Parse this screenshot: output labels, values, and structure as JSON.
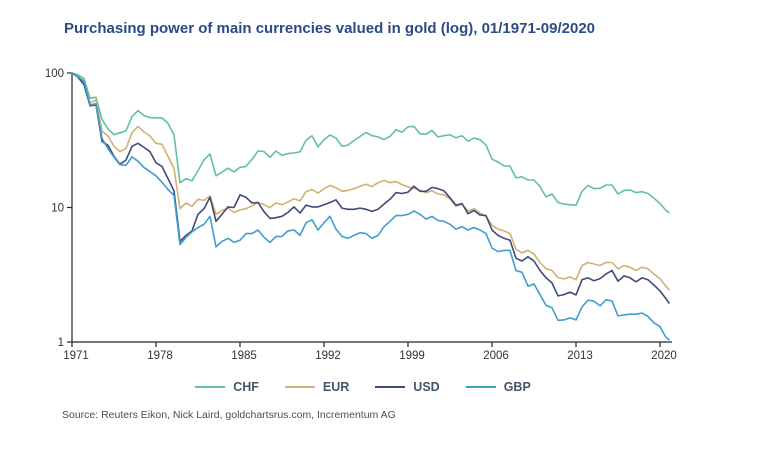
{
  "title": "Purchasing power of main currencies valued in gold (log), 01/1971-09/2020",
  "source": "Source: Reuters Eikon, Nick Laird, goldchartsrus.com, Incrementum AG",
  "colors": {
    "title_text": "#2c4a86",
    "axis": "#262626",
    "tick_label": "#333333",
    "legend_text": "#44546a",
    "source_text": "#4d4d4d",
    "chf": "#63c19e",
    "eur": "#cfb176",
    "usd": "#3f4a7a",
    "gbp": "#3f9ecd"
  },
  "chart_data": {
    "type": "line",
    "title": "Purchasing power of main currencies valued in gold (log), 01/1971-09/2020",
    "xlabel": "",
    "ylabel": "",
    "y_scale": "log",
    "ylim": [
      1,
      100
    ],
    "y_ticks": [
      100,
      10,
      1
    ],
    "x_ticks": [
      1971,
      1978,
      1985,
      1992,
      1999,
      2006,
      2013,
      2020
    ],
    "grid": false,
    "legend_position": "bottom",
    "x": [
      1971,
      1971.5,
      1972,
      1972.5,
      1973,
      1973.5,
      1974,
      1974.5,
      1975,
      1975.5,
      1976,
      1976.5,
      1977,
      1977.5,
      1978,
      1978.5,
      1979,
      1979.5,
      1980,
      1980.5,
      1981,
      1981.5,
      1982,
      1982.5,
      1983,
      1983.5,
      1984,
      1984.5,
      1985,
      1985.5,
      1986,
      1986.5,
      1987,
      1987.5,
      1988,
      1988.5,
      1989,
      1989.5,
      1990,
      1990.5,
      1991,
      1991.5,
      1992,
      1992.5,
      1993,
      1993.5,
      1994,
      1994.5,
      1995,
      1995.5,
      1996,
      1996.5,
      1997,
      1997.5,
      1998,
      1998.5,
      1999,
      1999.5,
      2000,
      2000.5,
      2001,
      2001.5,
      2002,
      2002.5,
      2003,
      2003.5,
      2004,
      2004.5,
      2005,
      2005.5,
      2006,
      2006.5,
      2007,
      2007.5,
      2008,
      2008.5,
      2009,
      2009.5,
      2010,
      2010.5,
      2011,
      2011.5,
      2012,
      2012.5,
      2013,
      2013.5,
      2014,
      2014.5,
      2015,
      2015.5,
      2016,
      2016.5,
      2017,
      2017.5,
      2018,
      2018.5,
      2019,
      2019.5,
      2020,
      2020.5,
      2020.75
    ],
    "series": [
      {
        "name": "CHF",
        "color": "#63c19e",
        "values": [
          100,
          97,
          91,
          65,
          66,
          45,
          38.4,
          34.8,
          35.9,
          37.1,
          47.4,
          52.5,
          48.2,
          46.6,
          46.4,
          46.4,
          42.2,
          34.6,
          15.3,
          16.4,
          15.8,
          18.8,
          22.6,
          25.0,
          17.2,
          18.3,
          19.6,
          18.4,
          19.9,
          20.2,
          22.8,
          26.3,
          26.1,
          23.6,
          26.3,
          24.4,
          25.2,
          25.4,
          25.9,
          31.6,
          34.1,
          28.2,
          31.9,
          34.6,
          32.8,
          28.5,
          29.1,
          31.5,
          33.7,
          36.1,
          34.2,
          33.5,
          32.0,
          33.8,
          37.9,
          36.3,
          39.8,
          40.1,
          35.4,
          35.0,
          37.4,
          33.5,
          34.2,
          34.7,
          33.0,
          34.2,
          31.1,
          32.8,
          31.9,
          29.1,
          22.9,
          21.8,
          20.4,
          20.3,
          16.6,
          16.9,
          16.0,
          16.0,
          14.3,
          12.0,
          12.6,
          10.9,
          10.6,
          10.5,
          10.4,
          13.2,
          14.6,
          13.8,
          13.9,
          14.7,
          14.7,
          12.6,
          13.4,
          13.5,
          12.9,
          13.1,
          12.7,
          11.7,
          10.7,
          9.5,
          9.2
        ]
      },
      {
        "name": "EUR",
        "color": "#cfb176",
        "values": [
          100,
          93.5,
          86,
          60,
          63,
          37,
          34,
          28.5,
          26,
          27.5,
          36,
          40,
          36.5,
          34,
          30,
          29.5,
          24,
          19.5,
          9.8,
          10.8,
          10.2,
          11.5,
          11.3,
          12.2,
          8.9,
          9.5,
          9.9,
          9.2,
          9.6,
          9.8,
          10.3,
          10.9,
          10.5,
          10.0,
          10.8,
          10.5,
          11.0,
          11.6,
          11.2,
          13.1,
          13.6,
          12.8,
          13.8,
          14.6,
          14.0,
          13.2,
          13.4,
          13.8,
          14.4,
          14.9,
          14.3,
          15.3,
          15.9,
          15.3,
          15.6,
          14.8,
          14.2,
          13.9,
          13.4,
          12.9,
          13.3,
          12.6,
          12.4,
          11.6,
          10.2,
          10.6,
          9.4,
          9.8,
          9.1,
          8.6,
          7.4,
          6.9,
          6.7,
          6.4,
          4.9,
          4.6,
          4.8,
          4.5,
          3.9,
          3.5,
          3.4,
          3.0,
          2.95,
          3.05,
          2.9,
          3.7,
          3.9,
          3.8,
          3.7,
          3.9,
          3.9,
          3.5,
          3.7,
          3.6,
          3.4,
          3.6,
          3.5,
          3.2,
          2.95,
          2.6,
          2.45
        ]
      },
      {
        "name": "USD",
        "color": "#3f4a7a",
        "values": [
          100,
          93,
          82,
          57,
          58,
          31,
          29,
          24,
          21,
          22.5,
          28.5,
          30,
          28,
          26,
          21.5,
          20.2,
          16.4,
          13.3,
          5.6,
          6.2,
          6.7,
          8.9,
          9.8,
          11.9,
          7.9,
          8.9,
          10.1,
          10.0,
          12.4,
          11.9,
          10.8,
          10.9,
          9.3,
          8.3,
          8.4,
          8.6,
          9.2,
          10.1,
          9.1,
          10.4,
          10.1,
          10.1,
          10.5,
          10.9,
          11.4,
          9.9,
          9.7,
          9.7,
          9.9,
          9.7,
          9.35,
          9.7,
          10.6,
          11.5,
          12.9,
          12.7,
          13.0,
          14.4,
          13.2,
          13.2,
          14.1,
          13.8,
          13.3,
          11.8,
          10.4,
          10.7,
          9.0,
          9.5,
          8.8,
          8.7,
          6.8,
          6.2,
          5.9,
          5.7,
          4.2,
          4.0,
          4.3,
          4.0,
          3.4,
          3.0,
          2.75,
          2.2,
          2.25,
          2.35,
          2.24,
          2.9,
          3.0,
          2.85,
          2.96,
          3.2,
          3.4,
          2.83,
          3.1,
          3.0,
          2.8,
          3.0,
          2.9,
          2.65,
          2.4,
          2.1,
          1.95
        ]
      },
      {
        "name": "GBP",
        "color": "#3f9ecd",
        "values": [
          100,
          94,
          87,
          58,
          59,
          32.7,
          27.3,
          23.7,
          20.8,
          20.6,
          23.8,
          22.1,
          19.8,
          18.5,
          17.2,
          15.4,
          13.6,
          12.3,
          5.3,
          6.0,
          6.6,
          7.1,
          7.5,
          8.6,
          5.1,
          5.6,
          5.9,
          5.5,
          5.7,
          6.4,
          6.4,
          6.8,
          6.0,
          5.5,
          6.1,
          6.1,
          6.7,
          6.8,
          6.2,
          7.7,
          8.1,
          6.8,
          7.7,
          8.6,
          6.9,
          6.1,
          5.9,
          6.2,
          6.5,
          6.4,
          5.9,
          6.2,
          7.2,
          7.9,
          8.7,
          8.7,
          8.9,
          9.4,
          8.9,
          8.2,
          8.6,
          8.0,
          7.9,
          7.5,
          6.9,
          7.2,
          6.8,
          7.1,
          6.8,
          6.4,
          5.0,
          4.7,
          4.8,
          4.8,
          3.4,
          3.3,
          2.6,
          2.7,
          2.25,
          1.87,
          1.8,
          1.45,
          1.46,
          1.51,
          1.46,
          1.82,
          2.05,
          2.01,
          1.86,
          2.06,
          2.02,
          1.56,
          1.59,
          1.61,
          1.61,
          1.64,
          1.55,
          1.39,
          1.3,
          1.08,
          1.04
        ]
      }
    ]
  }
}
